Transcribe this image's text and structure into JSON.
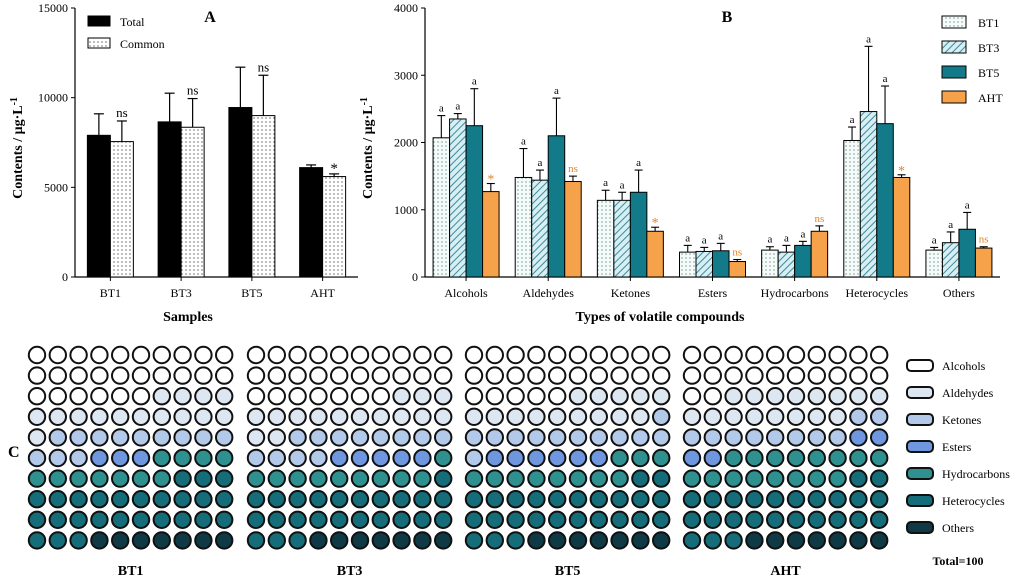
{
  "colors": {
    "total": "#000000",
    "common": "#ffffff",
    "BT1": "#f4fbf8",
    "BT3": "#b6dde6",
    "BT5": "#137a8a",
    "AHT": "#f5a24a",
    "sig_orange": "#e2842a",
    "dots": {
      "Alcohols": "#ffffff",
      "Aldehydes": "#dde7f2",
      "Ketones": "#b3c9ea",
      "Esters": "#6f97df",
      "Hydrocarbons": "#2f918f",
      "Heterocycles": "#146d78",
      "Others": "#0f3a45"
    }
  },
  "chart_data": [
    {
      "panel": "A",
      "type": "bar",
      "xlabel": "Samples",
      "ylabel": "Contents / μg·L",
      "ylabel_sup": "-1",
      "ylim": [
        0,
        15000
      ],
      "yticks": [
        0,
        5000,
        10000,
        15000
      ],
      "categories": [
        "BT1",
        "BT3",
        "BT5",
        "AHT"
      ],
      "series": [
        {
          "name": "Total",
          "values": [
            7900,
            8650,
            9450,
            6100
          ],
          "errors": [
            1200,
            1600,
            2250,
            150
          ],
          "labels": [
            "",
            "",
            "",
            ""
          ]
        },
        {
          "name": "Common",
          "values": [
            7550,
            8350,
            9000,
            5600
          ],
          "errors": [
            1150,
            1600,
            2250,
            150
          ],
          "labels": [
            "ns",
            "ns",
            "ns",
            "*"
          ]
        }
      ],
      "legend": [
        "Total",
        "Common"
      ],
      "legend_position": "top-left"
    },
    {
      "panel": "B",
      "type": "bar",
      "xlabel": "Types of volatile compounds",
      "ylabel": "Contents / μg·L",
      "ylabel_sup": "-1",
      "ylim": [
        0,
        4000
      ],
      "yticks": [
        0,
        1000,
        2000,
        3000,
        4000
      ],
      "categories": [
        "Alcohols",
        "Aldehydes",
        "Ketones",
        "Esters",
        "Hydrocarbons",
        "Heterocycles",
        "Others"
      ],
      "series": [
        {
          "name": "BT1",
          "values": [
            2070,
            1480,
            1140,
            370,
            400,
            2030,
            400
          ],
          "errors": [
            330,
            430,
            150,
            100,
            50,
            200,
            40
          ],
          "labels": [
            "a",
            "a",
            "a",
            "a",
            "a",
            "a",
            "a"
          ]
        },
        {
          "name": "BT3",
          "values": [
            2350,
            1440,
            1140,
            380,
            370,
            2460,
            510
          ],
          "errors": [
            80,
            150,
            120,
            60,
            100,
            970,
            160
          ],
          "labels": [
            "a",
            "a",
            "a",
            "a",
            "a",
            "a",
            "a"
          ]
        },
        {
          "name": "BT5",
          "values": [
            2250,
            2100,
            1260,
            390,
            470,
            2280,
            710
          ],
          "errors": [
            550,
            560,
            330,
            110,
            60,
            560,
            250
          ],
          "labels": [
            "a",
            "a",
            "a",
            "a",
            "a",
            "a",
            "a"
          ]
        },
        {
          "name": "AHT",
          "values": [
            1270,
            1420,
            680,
            230,
            680,
            1480,
            430
          ],
          "errors": [
            120,
            80,
            60,
            30,
            80,
            40,
            20
          ],
          "labels": [
            "*",
            "ns",
            "*",
            "ns",
            "ns",
            "*",
            "ns"
          ]
        }
      ],
      "legend": [
        "BT1",
        "BT3",
        "BT5",
        "AHT"
      ],
      "legend_position": "top-right"
    },
    {
      "panel": "C",
      "type": "waffle",
      "total_label": "Total=100",
      "categories": [
        "Alcohols",
        "Aldehydes",
        "Ketones",
        "Esters",
        "Hydrocarbons",
        "Heterocycles",
        "Others"
      ],
      "samples": [
        {
          "name": "BT1",
          "counts": [
            26,
            15,
            12,
            3,
            11,
            26,
            7
          ]
        },
        {
          "name": "BT3",
          "counts": [
            27,
            15,
            12,
            5,
            10,
            24,
            7
          ]
        },
        {
          "name": "BT5",
          "counts": [
            25,
            14,
            12,
            6,
            11,
            25,
            7
          ]
        },
        {
          "name": "AHT",
          "counts": [
            22,
            16,
            10,
            4,
            16,
            25,
            7
          ]
        }
      ]
    }
  ]
}
